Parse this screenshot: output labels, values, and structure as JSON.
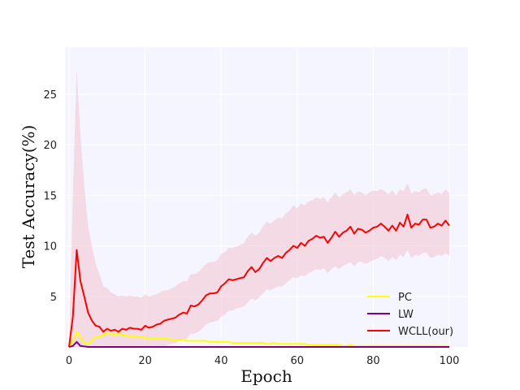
{
  "chart_data": {
    "type": "line",
    "xlabel": "Epoch",
    "ylabel": "Test Accuracy(%)",
    "xlim": [
      0,
      100
    ],
    "ylim": [
      0,
      25
    ],
    "xticks": [
      0,
      20,
      40,
      60,
      80,
      100
    ],
    "yticks": [
      5,
      10,
      15,
      20,
      25
    ],
    "grid": true,
    "background": "#f5f5ff",
    "legend_position": "lower-right",
    "x": [
      0,
      1,
      2,
      3,
      4,
      5,
      6,
      7,
      8,
      9,
      10,
      11,
      12,
      13,
      14,
      15,
      16,
      17,
      18,
      19,
      20,
      21,
      22,
      23,
      24,
      25,
      26,
      27,
      28,
      29,
      30,
      31,
      32,
      33,
      34,
      35,
      36,
      37,
      38,
      39,
      40,
      41,
      42,
      43,
      44,
      45,
      46,
      47,
      48,
      49,
      50,
      51,
      52,
      53,
      54,
      55,
      56,
      57,
      58,
      59,
      60,
      61,
      62,
      63,
      64,
      65,
      66,
      67,
      68,
      69,
      70,
      71,
      72,
      73,
      74,
      75,
      76,
      77,
      78,
      79,
      80,
      81,
      82,
      83,
      84,
      85,
      86,
      87,
      88,
      89,
      90,
      91,
      92,
      93,
      94,
      95,
      96,
      97,
      98,
      99,
      100
    ],
    "series": [
      {
        "name": "PC",
        "color": "#ffff00",
        "values": [
          0,
          0.6,
          1.5,
          1.0,
          0.4,
          0.3,
          0.6,
          1.0,
          1.0,
          1.2,
          1.4,
          1.3,
          1.2,
          1.4,
          1.1,
          1.2,
          1.0,
          1.1,
          1.0,
          1.0,
          0.9,
          0.9,
          0.8,
          0.8,
          0.9,
          0.8,
          0.8,
          0.7,
          0.7,
          0.7,
          0.7,
          0.6,
          0.6,
          0.6,
          0.6,
          0.6,
          0.6,
          0.5,
          0.5,
          0.5,
          0.5,
          0.5,
          0.5,
          0.4,
          0.4,
          0.4,
          0.4,
          0.4,
          0.4,
          0.4,
          0.4,
          0.4,
          0.3,
          0.3,
          0.4,
          0.3,
          0.3,
          0.3,
          0.3,
          0.3,
          0.3,
          0.3,
          0.3,
          0.2,
          0.2,
          0.2,
          0.2,
          0.2,
          0.2,
          0.2,
          0.2,
          0.2,
          0.1,
          0.1,
          0.2,
          0.1,
          0.1,
          0.1,
          0.1,
          0.1,
          0.1,
          0.1,
          0.1,
          0.1,
          0.1,
          0.1,
          0.1,
          0.1,
          0.1,
          0.1,
          0.1,
          0.1,
          0.1,
          0.1,
          0.1,
          0.1,
          0.1,
          0.1,
          0.1,
          0.1,
          0.1
        ]
      },
      {
        "name": "LW",
        "color": "#800080",
        "values": [
          0,
          0.1,
          0.5,
          0.1,
          0.05,
          0,
          0,
          0,
          0,
          0,
          0,
          0,
          0,
          0,
          0,
          0,
          0,
          0,
          0,
          0,
          0,
          0,
          0,
          0,
          0,
          0,
          0,
          0,
          0,
          0,
          0,
          0,
          0,
          0,
          0,
          0,
          0,
          0,
          0,
          0,
          0,
          0,
          0,
          0,
          0,
          0,
          0,
          0,
          0,
          0,
          0,
          0,
          0,
          0,
          0,
          0,
          0,
          0,
          0,
          0,
          0,
          0,
          0,
          0,
          0,
          0,
          0,
          0,
          0,
          0,
          0,
          0,
          0,
          0,
          0,
          0,
          0,
          0,
          0,
          0,
          0,
          0,
          0,
          0,
          0,
          0,
          0,
          0,
          0,
          0,
          0,
          0,
          0,
          0,
          0,
          0,
          0,
          0,
          0,
          0,
          0
        ]
      },
      {
        "name": "WCLL(our)",
        "color": "#ff0000",
        "band_color": "#f3c3cf",
        "values": [
          0,
          3.0,
          9.6,
          6.5,
          5.0,
          3.4,
          2.6,
          2.1,
          2.0,
          1.5,
          1.8,
          1.6,
          1.7,
          1.5,
          1.8,
          1.7,
          1.9,
          1.8,
          1.8,
          1.7,
          2.1,
          1.9,
          2.0,
          2.2,
          2.3,
          2.6,
          2.7,
          2.8,
          2.9,
          3.2,
          3.4,
          3.3,
          4.1,
          4.0,
          4.2,
          4.6,
          5.1,
          5.3,
          5.3,
          5.4,
          6.0,
          6.3,
          6.7,
          6.6,
          6.7,
          6.8,
          6.9,
          7.5,
          7.9,
          7.4,
          7.7,
          8.3,
          8.8,
          8.5,
          8.8,
          9.0,
          8.8,
          9.3,
          9.6,
          10.0,
          9.8,
          10.3,
          10.0,
          10.5,
          10.7,
          11.0,
          10.8,
          10.9,
          10.3,
          10.8,
          11.4,
          10.9,
          11.3,
          11.5,
          11.9,
          11.2,
          11.7,
          11.6,
          11.3,
          11.5,
          11.8,
          11.9,
          12.2,
          11.9,
          11.5,
          12.0,
          11.5,
          12.3,
          11.9,
          13.1,
          11.8,
          12.2,
          12.1,
          12.6,
          12.6,
          11.8,
          11.9,
          12.2,
          12.0,
          12.5,
          12.0
        ],
        "upper": [
          0,
          15,
          27.5,
          21,
          16,
          12,
          10,
          8.2,
          7.2,
          6,
          5.8,
          5.4,
          5.2,
          5.0,
          5.1,
          5.0,
          5.1,
          5.0,
          5.0,
          4.9,
          5.2,
          5.0,
          5.1,
          5.2,
          5.4,
          5.6,
          5.6,
          5.8,
          6.0,
          6.3,
          6.5,
          6.5,
          7.2,
          7.2,
          7.4,
          7.8,
          8.2,
          8.4,
          8.4,
          8.6,
          9.2,
          9.4,
          9.8,
          9.8,
          9.9,
          10.1,
          10.3,
          10.9,
          11.3,
          11.0,
          11.3,
          11.9,
          12.4,
          12.2,
          12.5,
          12.8,
          12.7,
          13.2,
          13.5,
          14.0,
          13.7,
          14.2,
          14.0,
          14.4,
          14.5,
          14.8,
          14.6,
          14.8,
          14.3,
          14.8,
          15.3,
          14.8,
          15.1,
          15.3,
          15.6,
          15.0,
          15.4,
          15.3,
          15.0,
          15.3,
          15.5,
          15.4,
          15.6,
          15.4,
          15.1,
          15.5,
          15.0,
          15.6,
          15.4,
          16.2,
          15.2,
          15.4,
          15.3,
          15.6,
          15.7,
          15.0,
          15.1,
          15.3,
          15.1,
          15.6,
          15.2
        ],
        "lower": [
          0,
          0,
          0,
          0,
          0,
          0,
          0,
          0,
          0,
          0,
          0,
          0,
          0,
          0,
          0,
          0,
          0,
          0,
          0,
          0,
          0,
          0,
          0,
          0,
          0,
          0,
          0.2,
          0.3,
          0.4,
          0.6,
          0.8,
          0.8,
          1.3,
          1.3,
          1.5,
          1.8,
          2.2,
          2.4,
          2.5,
          2.6,
          3.0,
          3.2,
          3.6,
          3.6,
          3.8,
          3.9,
          4.0,
          4.4,
          4.8,
          4.6,
          4.9,
          5.3,
          5.7,
          5.6,
          5.8,
          6.0,
          6.0,
          6.3,
          6.6,
          6.9,
          6.8,
          7.1,
          7.0,
          7.3,
          7.5,
          7.7,
          7.6,
          7.8,
          7.3,
          7.7,
          8.0,
          7.7,
          8.0,
          8.2,
          8.4,
          8.0,
          8.4,
          8.4,
          8.2,
          8.4,
          8.6,
          8.7,
          9.0,
          8.8,
          8.5,
          8.9,
          8.6,
          9.1,
          8.9,
          9.6,
          8.8,
          9.1,
          9.0,
          9.3,
          9.3,
          8.8,
          8.9,
          9.1,
          9.0,
          9.3,
          9.0
        ]
      }
    ]
  }
}
